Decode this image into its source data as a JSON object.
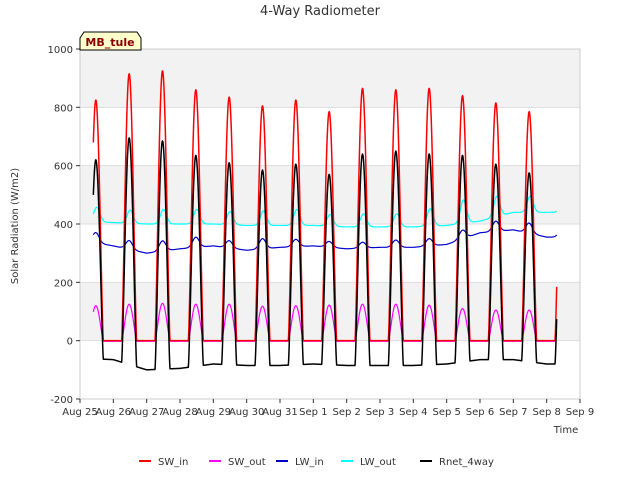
{
  "chart_data": {
    "type": "line",
    "title": "4-Way Radiometer",
    "xlabel": "Time",
    "ylabel": "Solar Radiation (W/m2)",
    "site_tag": "MB_tule",
    "ylim": [
      -200,
      1000
    ],
    "xlim": [
      0,
      15
    ],
    "y_ticks": [
      -200,
      0,
      200,
      400,
      600,
      800,
      1000
    ],
    "x_tick_labels": [
      "Aug 25",
      "Aug 26",
      "Aug 27",
      "Aug 28",
      "Aug 29",
      "Aug 30",
      "Aug 31",
      "Sep 1",
      "Sep 2",
      "Sep 3",
      "Sep 4",
      "Sep 5",
      "Sep 6",
      "Sep 7",
      "Sep 8",
      "Sep 9"
    ],
    "x_start": 0.4,
    "x_end": 14.3,
    "daylight_start": 0.25,
    "daylight_end": 0.7,
    "series": [
      {
        "name": "SW_in",
        "color": "#ff0000",
        "daily_peak": [
          825,
          915,
          925,
          860,
          835,
          805,
          825,
          785,
          865,
          860,
          865,
          840,
          815,
          785
        ]
      },
      {
        "name": "SW_out",
        "color": "#ff00ff",
        "daily_peak": [
          120,
          125,
          128,
          125,
          125,
          118,
          120,
          122,
          125,
          125,
          122,
          110,
          105,
          105
        ],
        "night": -2
      },
      {
        "name": "LW_in",
        "color": "#0000cd",
        "daily_base": [
          345,
          325,
          300,
          315,
          325,
          310,
          320,
          325,
          315,
          320,
          320,
          330,
          370,
          380,
          355
        ],
        "daily_bump": [
          35,
          30,
          35,
          35,
          25,
          35,
          25,
          20,
          20,
          25,
          25,
          30,
          35,
          35
        ]
      },
      {
        "name": "LW_out",
        "color": "#00ffff",
        "daily_base": [
          410,
          405,
          400,
          400,
          400,
          395,
          395,
          395,
          390,
          390,
          390,
          395,
          410,
          440,
          440
        ],
        "daily_bump": [
          50,
          45,
          50,
          50,
          45,
          50,
          55,
          40,
          45,
          45,
          60,
          80,
          70,
          55
        ]
      },
      {
        "name": "Rnet_4way",
        "color": "#000000",
        "daily_peak": [
          620,
          695,
          685,
          635,
          610,
          585,
          605,
          570,
          640,
          650,
          640,
          635,
          605,
          575
        ],
        "night": [
          -60,
          -65,
          -100,
          -95,
          -80,
          -85,
          -85,
          -80,
          -85,
          -85,
          -85,
          -80,
          -65,
          -65,
          -80
        ]
      }
    ]
  }
}
